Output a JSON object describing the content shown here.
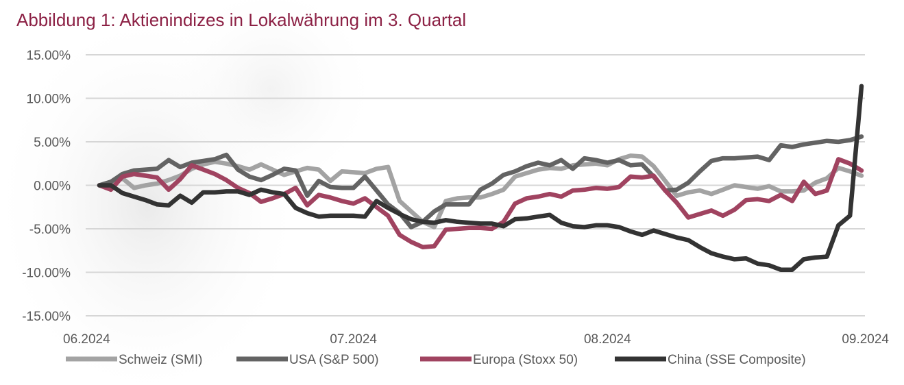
{
  "chart_data": {
    "type": "line",
    "title": "Abbildung 1:  Aktienindizes in Lokalwährung im 3. Quartal",
    "xlabel": "",
    "ylabel": "",
    "ylim": [
      -15,
      15
    ],
    "yticks": [
      15,
      10,
      5,
      0,
      -5,
      -10,
      -15
    ],
    "ytick_labels": [
      "15.00%",
      "10.00%",
      "5.00%",
      "0.00%",
      "-5.00%",
      "-10.00%",
      "-15.00%"
    ],
    "x_range": [
      0,
      66
    ],
    "xticks": [
      0,
      22,
      44,
      66
    ],
    "xtick_labels": [
      "06.2024",
      "07.2024",
      "08.2024",
      "09.2024"
    ],
    "grid": true,
    "legend_position": "bottom",
    "series": [
      {
        "name": "Schweiz (SMI)",
        "color": "#a3a3a3",
        "points": [
          [
            0,
            0
          ],
          [
            1,
            0.3
          ],
          [
            2,
            0.8
          ],
          [
            3,
            -0.3
          ],
          [
            4,
            0
          ],
          [
            5,
            0.2
          ],
          [
            6,
            0.6
          ],
          [
            7,
            1.1
          ],
          [
            8,
            1.9
          ],
          [
            9,
            2.4
          ],
          [
            10,
            2.7
          ],
          [
            11,
            2.5
          ],
          [
            12,
            2.2
          ],
          [
            13,
            1.8
          ],
          [
            14,
            2.4
          ],
          [
            15,
            1.8
          ],
          [
            16,
            1.2
          ],
          [
            17,
            1.6
          ],
          [
            18,
            2.0
          ],
          [
            19,
            1.8
          ],
          [
            20,
            0.5
          ],
          [
            21,
            1.6
          ],
          [
            22,
            1.5
          ],
          [
            23,
            1.4
          ],
          [
            24,
            1.9
          ],
          [
            25,
            2.1
          ],
          [
            26,
            -1.8
          ],
          [
            27,
            -3.0
          ],
          [
            28,
            -4.2
          ],
          [
            29,
            -4.8
          ],
          [
            30,
            -1.8
          ],
          [
            31,
            -1.5
          ],
          [
            32,
            -1.4
          ],
          [
            33,
            -1.4
          ],
          [
            34,
            -1.0
          ],
          [
            35,
            -0.5
          ],
          [
            36,
            1.0
          ],
          [
            37,
            1.4
          ],
          [
            38,
            1.8
          ],
          [
            39,
            2.0
          ],
          [
            40,
            1.9
          ],
          [
            41,
            2.3
          ],
          [
            42,
            2.4
          ],
          [
            43,
            2.5
          ],
          [
            44,
            2.3
          ],
          [
            45,
            3.0
          ],
          [
            46,
            3.4
          ],
          [
            47,
            3.3
          ],
          [
            48,
            2.2
          ],
          [
            49,
            0.5
          ],
          [
            50,
            -1.2
          ],
          [
            51,
            -0.8
          ],
          [
            52,
            -0.6
          ],
          [
            53,
            -1.0
          ],
          [
            54,
            -0.5
          ],
          [
            55,
            0
          ],
          [
            56,
            -0.2
          ],
          [
            57,
            -0.4
          ],
          [
            58,
            -0.1
          ],
          [
            59,
            -0.7
          ],
          [
            60,
            -0.7
          ],
          [
            61,
            -0.6
          ],
          [
            62,
            0.3
          ],
          [
            63,
            0.8
          ],
          [
            64,
            2.0
          ],
          [
            65,
            1.6
          ],
          [
            66,
            1.1
          ]
        ]
      },
      {
        "name": "USA (S&P 500)",
        "color": "#636363",
        "points": [
          [
            0,
            0
          ],
          [
            1,
            0.4
          ],
          [
            2,
            1.3
          ],
          [
            3,
            1.7
          ],
          [
            4,
            1.8
          ],
          [
            5,
            1.9
          ],
          [
            6,
            2.9
          ],
          [
            7,
            2.1
          ],
          [
            8,
            2.6
          ],
          [
            9,
            2.8
          ],
          [
            10,
            3.0
          ],
          [
            11,
            3.5
          ],
          [
            12,
            1.8
          ],
          [
            13,
            1.0
          ],
          [
            14,
            0.6
          ],
          [
            15,
            1.2
          ],
          [
            16,
            1.9
          ],
          [
            17,
            1.7
          ],
          [
            18,
            -1.2
          ],
          [
            19,
            0.5
          ],
          [
            20,
            -0.2
          ],
          [
            21,
            -0.3
          ],
          [
            22,
            -0.3
          ],
          [
            23,
            1.0
          ],
          [
            24,
            -0.6
          ],
          [
            25,
            -2.2
          ],
          [
            26,
            -3.2
          ],
          [
            27,
            -4.8
          ],
          [
            28,
            -4.2
          ],
          [
            29,
            -3.0
          ],
          [
            30,
            -2.2
          ],
          [
            31,
            -2.2
          ],
          [
            32,
            -2.2
          ],
          [
            33,
            -0.5
          ],
          [
            34,
            0.2
          ],
          [
            35,
            1.2
          ],
          [
            36,
            1.6
          ],
          [
            37,
            2.2
          ],
          [
            38,
            2.6
          ],
          [
            39,
            2.3
          ],
          [
            40,
            2.9
          ],
          [
            41,
            1.9
          ],
          [
            42,
            3.1
          ],
          [
            43,
            2.9
          ],
          [
            44,
            2.6
          ],
          [
            45,
            2.9
          ],
          [
            46,
            2.3
          ],
          [
            47,
            2.4
          ],
          [
            48,
            1.0
          ],
          [
            49,
            -0.6
          ],
          [
            50,
            -0.5
          ],
          [
            51,
            0.3
          ],
          [
            52,
            1.6
          ],
          [
            53,
            2.8
          ],
          [
            54,
            3.1
          ],
          [
            55,
            3.1
          ],
          [
            56,
            3.2
          ],
          [
            57,
            3.3
          ],
          [
            58,
            2.9
          ],
          [
            59,
            4.6
          ],
          [
            60,
            4.4
          ],
          [
            61,
            4.7
          ],
          [
            62,
            4.9
          ],
          [
            63,
            5.1
          ],
          [
            64,
            5.0
          ],
          [
            65,
            5.2
          ],
          [
            66,
            5.6
          ]
        ]
      },
      {
        "name": "Europa (Stoxx 50)",
        "color": "#a04360",
        "points": [
          [
            0,
            0
          ],
          [
            1,
            -0.5
          ],
          [
            2,
            1.0
          ],
          [
            3,
            1.3
          ],
          [
            4,
            1.1
          ],
          [
            5,
            0.9
          ],
          [
            6,
            -0.5
          ],
          [
            7,
            0.7
          ],
          [
            8,
            2.3
          ],
          [
            9,
            1.8
          ],
          [
            10,
            1.3
          ],
          [
            11,
            0.6
          ],
          [
            12,
            -0.3
          ],
          [
            13,
            -0.9
          ],
          [
            14,
            -1.9
          ],
          [
            15,
            -1.5
          ],
          [
            16,
            -1.0
          ],
          [
            17,
            -0.3
          ],
          [
            18,
            -2.3
          ],
          [
            19,
            -1.1
          ],
          [
            20,
            -1.4
          ],
          [
            21,
            -1.8
          ],
          [
            22,
            -2.1
          ],
          [
            23,
            -1.5
          ],
          [
            24,
            -2.5
          ],
          [
            25,
            -3.5
          ],
          [
            26,
            -5.7
          ],
          [
            27,
            -6.5
          ],
          [
            28,
            -7.1
          ],
          [
            29,
            -7.0
          ],
          [
            30,
            -5.1
          ],
          [
            31,
            -5.0
          ],
          [
            32,
            -4.9
          ],
          [
            33,
            -4.9
          ],
          [
            34,
            -5.0
          ],
          [
            35,
            -4.2
          ],
          [
            36,
            -2.1
          ],
          [
            37,
            -1.5
          ],
          [
            38,
            -1.3
          ],
          [
            39,
            -1.0
          ],
          [
            40,
            -1.3
          ],
          [
            41,
            -0.6
          ],
          [
            42,
            -0.5
          ],
          [
            43,
            -0.3
          ],
          [
            44,
            -0.4
          ],
          [
            45,
            -0.2
          ],
          [
            46,
            1.0
          ],
          [
            47,
            0.9
          ],
          [
            48,
            1.1
          ],
          [
            49,
            -0.6
          ],
          [
            50,
            -2.0
          ],
          [
            51,
            -3.7
          ],
          [
            52,
            -3.3
          ],
          [
            53,
            -2.9
          ],
          [
            54,
            -3.5
          ],
          [
            55,
            -2.8
          ],
          [
            56,
            -1.7
          ],
          [
            57,
            -1.6
          ],
          [
            58,
            -1.8
          ],
          [
            59,
            -1.1
          ],
          [
            60,
            -1.8
          ],
          [
            61,
            0.4
          ],
          [
            62,
            -1.0
          ],
          [
            63,
            -0.6
          ],
          [
            64,
            3.0
          ],
          [
            65,
            2.5
          ],
          [
            66,
            1.7
          ]
        ]
      },
      {
        "name": "China (SSE Composite)",
        "color": "#333333",
        "points": [
          [
            0,
            0
          ],
          [
            1,
            0
          ],
          [
            2,
            -0.9
          ],
          [
            3,
            -1.3
          ],
          [
            4,
            -1.7
          ],
          [
            5,
            -2.2
          ],
          [
            6,
            -2.3
          ],
          [
            7,
            -1.2
          ],
          [
            8,
            -2.0
          ],
          [
            9,
            -0.8
          ],
          [
            10,
            -0.8
          ],
          [
            11,
            -0.7
          ],
          [
            12,
            -0.7
          ],
          [
            13,
            -1.1
          ],
          [
            14,
            -0.5
          ],
          [
            15,
            -0.8
          ],
          [
            16,
            -1.0
          ],
          [
            17,
            -2.6
          ],
          [
            18,
            -3.2
          ],
          [
            19,
            -3.6
          ],
          [
            20,
            -3.5
          ],
          [
            21,
            -3.5
          ],
          [
            22,
            -3.5
          ],
          [
            23,
            -3.6
          ],
          [
            24,
            -1.8
          ],
          [
            25,
            -2.6
          ],
          [
            26,
            -3.3
          ],
          [
            27,
            -3.9
          ],
          [
            28,
            -4.2
          ],
          [
            29,
            -4.3
          ],
          [
            30,
            -4.0
          ],
          [
            31,
            -4.2
          ],
          [
            32,
            -4.3
          ],
          [
            33,
            -4.4
          ],
          [
            34,
            -4.4
          ],
          [
            35,
            -4.7
          ],
          [
            36,
            -3.9
          ],
          [
            37,
            -3.8
          ],
          [
            38,
            -3.6
          ],
          [
            39,
            -3.4
          ],
          [
            40,
            -4.3
          ],
          [
            41,
            -4.7
          ],
          [
            42,
            -4.8
          ],
          [
            43,
            -4.6
          ],
          [
            44,
            -4.6
          ],
          [
            45,
            -4.8
          ],
          [
            46,
            -5.3
          ],
          [
            47,
            -5.7
          ],
          [
            48,
            -5.2
          ],
          [
            49,
            -5.6
          ],
          [
            50,
            -6.0
          ],
          [
            51,
            -6.3
          ],
          [
            52,
            -7.1
          ],
          [
            53,
            -7.8
          ],
          [
            54,
            -8.2
          ],
          [
            55,
            -8.5
          ],
          [
            56,
            -8.4
          ],
          [
            57,
            -9.0
          ],
          [
            58,
            -9.2
          ],
          [
            59,
            -9.7
          ],
          [
            60,
            -9.7
          ],
          [
            61,
            -8.5
          ],
          [
            62,
            -8.3
          ],
          [
            63,
            -8.2
          ],
          [
            64,
            -4.6
          ],
          [
            65,
            -3.5
          ],
          [
            66,
            11.4
          ]
        ]
      }
    ]
  }
}
